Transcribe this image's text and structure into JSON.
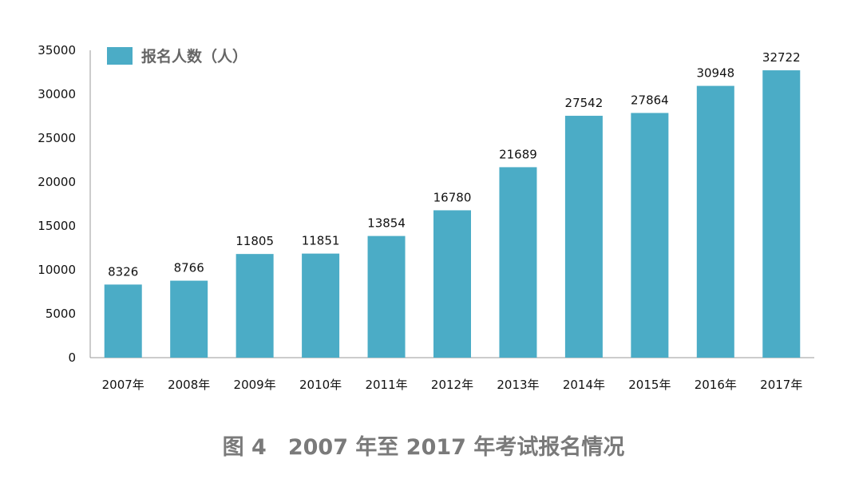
{
  "chart_data": {
    "type": "bar",
    "title": "",
    "xlabel": "",
    "ylabel": "",
    "categories": [
      "2007年",
      "2008年",
      "2009年",
      "2010年",
      "2011年",
      "2012年",
      "2013年",
      "2014年",
      "2015年",
      "2016年",
      "2017年"
    ],
    "series": [
      {
        "name": "报名人数（人）",
        "values": [
          8326,
          8766,
          11805,
          11851,
          13854,
          16780,
          21689,
          27542,
          27864,
          30948,
          32722
        ],
        "color": "#4bacc6"
      }
    ],
    "ylim": [
      0,
      35000
    ],
    "yticks": [
      "0",
      "5000",
      "10000",
      "15000",
      "20000",
      "25000",
      "30000",
      "35000"
    ],
    "data_labels": true,
    "grid": false,
    "legend": "top-left"
  },
  "caption": "图 4　2007 年至 2017 年考试报名情况"
}
